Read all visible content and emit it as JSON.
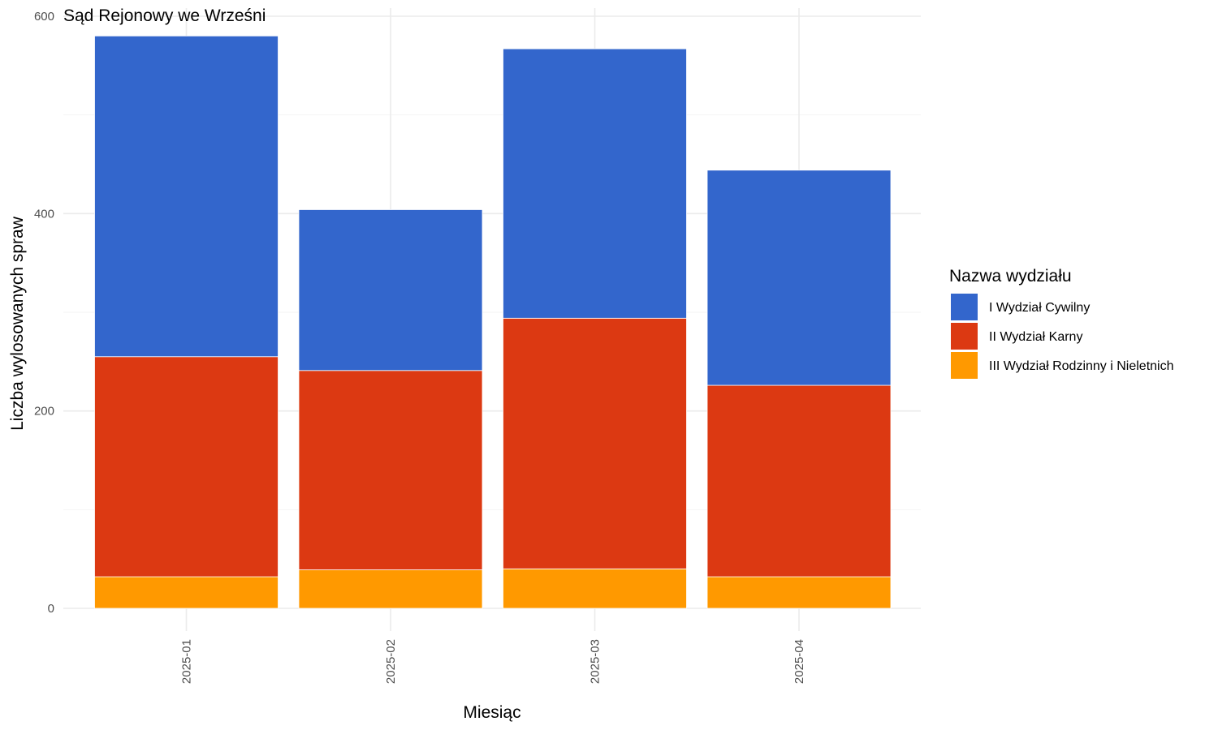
{
  "chart_data": {
    "type": "bar",
    "stacked": true,
    "title": "Sąd Rejonowy we Wrześni",
    "xlabel": "Miesiąc",
    "ylabel": "Liczba wylosowanych spraw",
    "ylim": [
      0,
      600
    ],
    "y_ticks": [
      0,
      200,
      400,
      600
    ],
    "grid": true,
    "legend": {
      "title": "Nazwa wydziału",
      "position": "right"
    },
    "categories": [
      "2025-01",
      "2025-02",
      "2025-03",
      "2025-04"
    ],
    "series": [
      {
        "name": "III Wydział Rodzinny i Nieletnich",
        "color": "#FF9900",
        "values": [
          32,
          39,
          40,
          32
        ]
      },
      {
        "name": "II Wydział Karny",
        "color": "#DC3912",
        "values": [
          223,
          202,
          254,
          194
        ]
      },
      {
        "name": "I Wydział Cywilny",
        "color": "#3366CC",
        "values": [
          325,
          163,
          273,
          218
        ]
      }
    ],
    "legend_order": [
      "I Wydział Cywilny",
      "II Wydział Karny",
      "III Wydział Rodzinny i Nieletnich"
    ]
  }
}
